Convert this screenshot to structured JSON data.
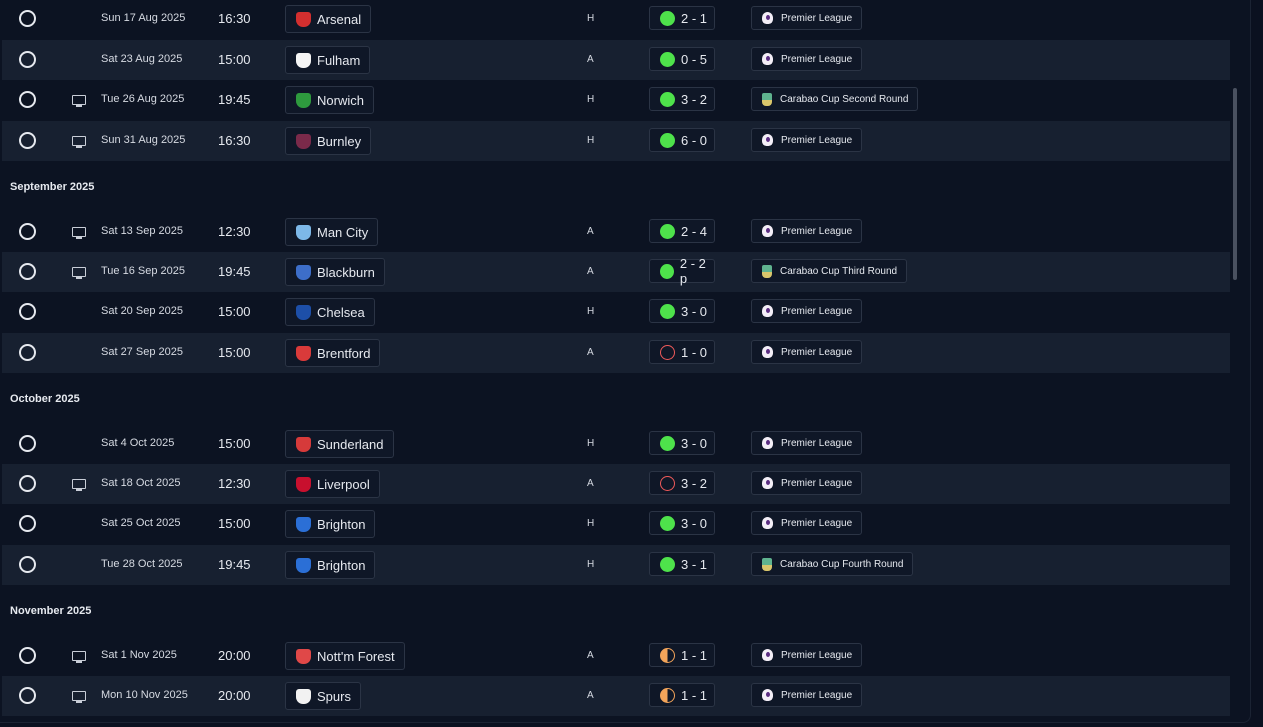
{
  "months": [
    "September 2025",
    "October 2025",
    "November 2025"
  ],
  "fixtures": [
    {
      "date": "Sun 17 Aug 2025",
      "time": "16:30",
      "team": "Arsenal",
      "badge_color": "#d32f2f",
      "venue": "H",
      "result": "win",
      "score": "2 - 1",
      "competition": "Premier League",
      "comp_type": "league",
      "tv": false
    },
    {
      "date": "Sat 23 Aug 2025",
      "time": "15:00",
      "team": "Fulham",
      "badge_color": "#f5f5f5",
      "venue": "A",
      "result": "win",
      "score": "0 - 5",
      "competition": "Premier League",
      "comp_type": "league",
      "tv": false
    },
    {
      "date": "Tue 26 Aug 2025",
      "time": "19:45",
      "team": "Norwich",
      "badge_color": "#2e9a3e",
      "venue": "H",
      "result": "win",
      "score": "3 - 2",
      "competition": "Carabao Cup Second Round",
      "comp_type": "cup",
      "tv": true
    },
    {
      "date": "Sun 31 Aug 2025",
      "time": "16:30",
      "team": "Burnley",
      "badge_color": "#7a2a4a",
      "venue": "H",
      "result": "win",
      "score": "6 - 0",
      "competition": "Premier League",
      "comp_type": "league",
      "tv": true
    },
    {
      "date": "Sat 13 Sep 2025",
      "time": "12:30",
      "team": "Man City",
      "badge_color": "#7db8e8",
      "venue": "A",
      "result": "win",
      "score": "2 - 4",
      "competition": "Premier League",
      "comp_type": "league",
      "tv": true
    },
    {
      "date": "Tue 16 Sep 2025",
      "time": "19:45",
      "team": "Blackburn",
      "badge_color": "#3d6ec9",
      "venue": "A",
      "result": "win",
      "score": "2 - 2 p",
      "competition": "Carabao Cup Third Round",
      "comp_type": "cup",
      "tv": true
    },
    {
      "date": "Sat 20 Sep 2025",
      "time": "15:00",
      "team": "Chelsea",
      "badge_color": "#1d4fa8",
      "venue": "H",
      "result": "win",
      "score": "3 - 0",
      "competition": "Premier League",
      "comp_type": "league",
      "tv": false
    },
    {
      "date": "Sat 27 Sep 2025",
      "time": "15:00",
      "team": "Brentford",
      "badge_color": "#d93a3a",
      "venue": "A",
      "result": "loss",
      "score": "1 - 0",
      "competition": "Premier League",
      "comp_type": "league",
      "tv": false
    },
    {
      "date": "Sat 4 Oct 2025",
      "time": "15:00",
      "team": "Sunderland",
      "badge_color": "#d63a3a",
      "venue": "H",
      "result": "win",
      "score": "3 - 0",
      "competition": "Premier League",
      "comp_type": "league",
      "tv": false
    },
    {
      "date": "Sat 18 Oct 2025",
      "time": "12:30",
      "team": "Liverpool",
      "badge_color": "#c8102e",
      "venue": "A",
      "result": "loss",
      "score": "3 - 2",
      "competition": "Premier League",
      "comp_type": "league",
      "tv": true
    },
    {
      "date": "Sat 25 Oct 2025",
      "time": "15:00",
      "team": "Brighton",
      "badge_color": "#2b6fd6",
      "venue": "H",
      "result": "win",
      "score": "3 - 0",
      "competition": "Premier League",
      "comp_type": "league",
      "tv": false
    },
    {
      "date": "Tue 28 Oct 2025",
      "time": "19:45",
      "team": "Brighton",
      "badge_color": "#2b6fd6",
      "venue": "H",
      "result": "win",
      "score": "3 - 1",
      "competition": "Carabao Cup Fourth Round",
      "comp_type": "cup",
      "tv": false
    },
    {
      "date": "Sat 1 Nov 2025",
      "time": "20:00",
      "team": "Nott'm Forest",
      "badge_color": "#e04848",
      "venue": "A",
      "result": "draw",
      "score": "1 - 1",
      "competition": "Premier League",
      "comp_type": "league",
      "tv": true
    },
    {
      "date": "Mon 10 Nov 2025",
      "time": "20:00",
      "team": "Spurs",
      "badge_color": "#f2f2f2",
      "venue": "A",
      "result": "draw",
      "score": "1 - 1",
      "competition": "Premier League",
      "comp_type": "league",
      "tv": true
    }
  ]
}
